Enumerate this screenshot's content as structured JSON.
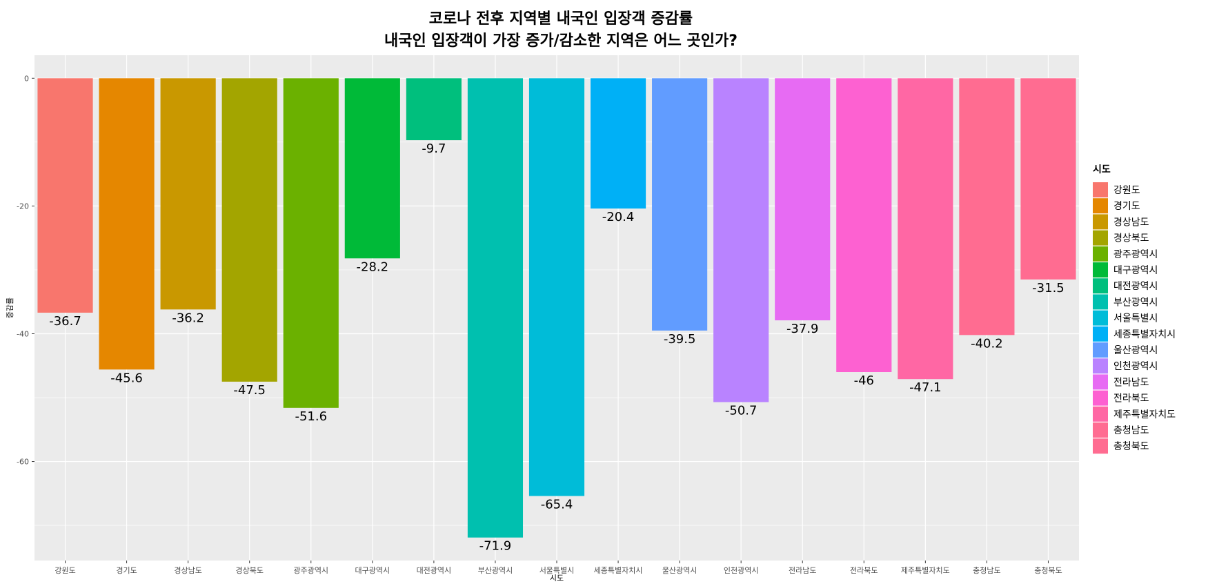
{
  "chart_data": {
    "type": "bar",
    "title": "코로나 전후 지역별 내국인 입장객 증감률",
    "subtitle": "내국인 입장객이 가장 증가/감소한 지역은 어느 곳인가?",
    "xlabel": "시도",
    "ylabel": "증감률",
    "categories": [
      "강원도",
      "경기도",
      "경상남도",
      "경상북도",
      "광주광역시",
      "대구광역시",
      "대전광역시",
      "부산광역시",
      "서울특별시",
      "세종특별자치시",
      "울산광역시",
      "인천광역시",
      "전라남도",
      "전라북도",
      "제주특별자치도",
      "충청남도",
      "충청북도"
    ],
    "values": [
      -36.7,
      -45.6,
      -36.2,
      -47.5,
      -51.6,
      -28.2,
      -9.7,
      -71.9,
      -65.4,
      -20.4,
      -39.5,
      -50.7,
      -37.9,
      -46,
      -47.1,
      -40.2,
      -31.5
    ],
    "data_labels": [
      "-36.7",
      "-45.6",
      "-36.2",
      "-47.5",
      "-51.6",
      "-28.2",
      "-9.7",
      "-71.9",
      "-65.4",
      "-20.4",
      "-39.5",
      "-50.7",
      "-37.9",
      "-46",
      "-47.1",
      "-40.2",
      "-31.5"
    ],
    "colors": [
      "#F8766D",
      "#E58700",
      "#C99800",
      "#A3A500",
      "#6BB100",
      "#00BA38",
      "#00BF7D",
      "#00C0AF",
      "#00BCD8",
      "#00B0F6",
      "#619CFF",
      "#B983FF",
      "#E76BF3",
      "#FD61D1",
      "#FF67A4",
      "#FF6C91",
      "#FF6C91"
    ],
    "ylim": [
      -75.5,
      3.6
    ],
    "yticks": [
      0,
      -20,
      -40,
      -60
    ],
    "ytick_labels": [
      "0",
      "-20",
      "-40",
      "-60"
    ],
    "grid": true,
    "legend": {
      "title": "시도",
      "placement": "right",
      "entries": [
        "강원도",
        "경기도",
        "경상남도",
        "경상북도",
        "광주광역시",
        "대구광역시",
        "대전광역시",
        "부산광역시",
        "서울특별시",
        "세종특별자치시",
        "울산광역시",
        "인천광역시",
        "전라남도",
        "전라북도",
        "제주특별자치도",
        "충청남도",
        "충청북도"
      ]
    },
    "panel_background": "#EBEBEB",
    "grid_color": "#FFFFFF"
  }
}
